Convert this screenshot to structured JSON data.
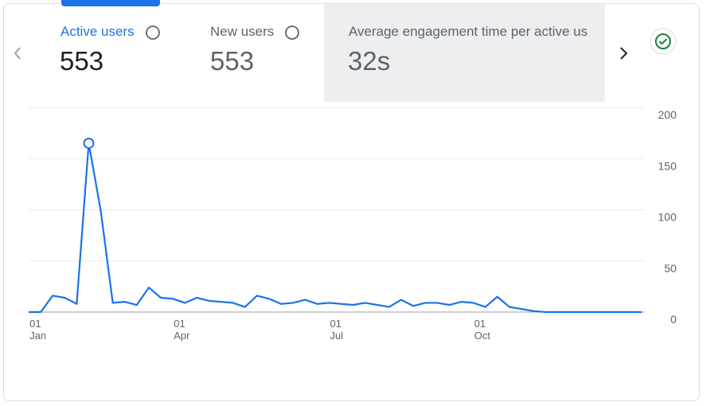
{
  "tabs": [
    {
      "label": "Active users",
      "value": "553"
    },
    {
      "label": "New users",
      "value": "553"
    },
    {
      "label": "Average engagement time per active us",
      "value": "32s"
    }
  ],
  "chart_data": {
    "type": "line",
    "categories": [
      null,
      "01\nJan",
      null,
      null,
      null,
      null,
      null,
      null,
      null,
      null,
      null,
      null,
      null,
      "01\nApr",
      null,
      null,
      null,
      null,
      null,
      null,
      null,
      null,
      null,
      null,
      null,
      null,
      "01\nJul",
      null,
      null,
      null,
      null,
      null,
      null,
      null,
      null,
      null,
      null,
      null,
      "01\nOct",
      null,
      null,
      null,
      null,
      null,
      null,
      null,
      null,
      null,
      null,
      null,
      null,
      null
    ],
    "series": [
      {
        "name": "Active users",
        "color": "#1a73e8",
        "values": [
          0,
          0,
          16,
          14,
          8,
          165,
          99,
          9,
          10,
          7,
          24,
          14,
          13,
          9,
          14,
          11,
          10,
          9,
          5,
          16,
          13,
          8,
          9,
          12,
          8,
          9,
          8,
          7,
          9,
          7,
          5,
          12,
          6,
          9,
          9,
          7,
          10,
          9,
          5,
          15,
          5,
          3,
          1,
          0,
          0,
          0,
          0,
          0,
          0,
          0,
          0,
          0
        ]
      }
    ],
    "ylim": [
      0,
      200
    ],
    "yticks": [
      0,
      50,
      100,
      150,
      200
    ],
    "grid": true,
    "highlight_index": 5
  }
}
